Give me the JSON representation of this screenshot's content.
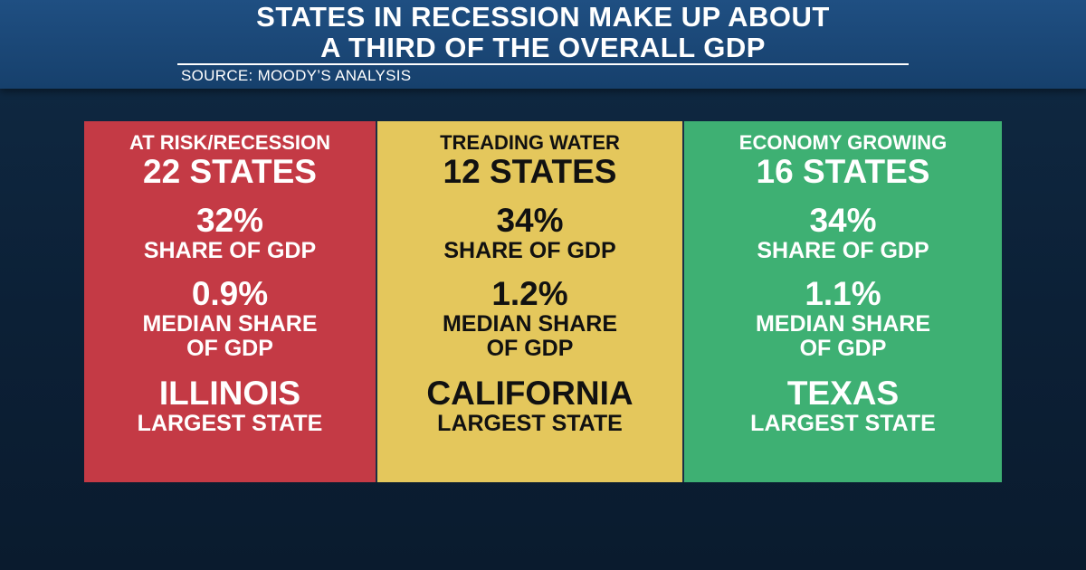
{
  "header": {
    "title_line1": "STATES IN RECESSION MAKE UP ABOUT",
    "title_line2": "A THIRD OF THE OVERALL GDP",
    "source": "SOURCE: MOODY’S ANALYSIS"
  },
  "colors": {
    "recession": "#c43a45",
    "treading": "#e4c75c",
    "growing": "#3eb073",
    "header": "#1a4675",
    "background": "#0c2036"
  },
  "panels": [
    {
      "label": "AT RISK/RECESSION",
      "count": "22 STATES",
      "share_value": "32%",
      "share_label": "SHARE OF GDP",
      "median_value": "0.9%",
      "median_label_1": "MEDIAN SHARE",
      "median_label_2": "OF GDP",
      "largest_state": "ILLINOIS",
      "largest_label": "LARGEST STATE"
    },
    {
      "label": "TREADING WATER",
      "count": "12 STATES",
      "share_value": "34%",
      "share_label": "SHARE OF GDP",
      "median_value": "1.2%",
      "median_label_1": "MEDIAN SHARE",
      "median_label_2": "OF GDP",
      "largest_state": "CALIFORNIA",
      "largest_label": "LARGEST STATE"
    },
    {
      "label": "ECONOMY GROWING",
      "count": "16 STATES",
      "share_value": "34%",
      "share_label": "SHARE OF GDP",
      "median_value": "1.1%",
      "median_label_1": "MEDIAN SHARE",
      "median_label_2": "OF GDP",
      "largest_state": "TEXAS",
      "largest_label": "LARGEST STATE"
    }
  ]
}
